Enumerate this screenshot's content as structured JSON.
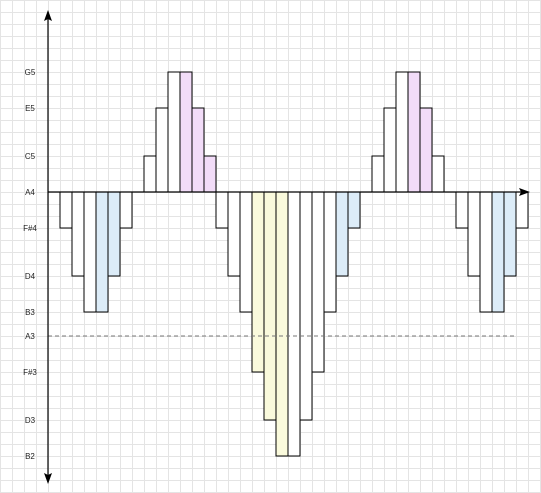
{
  "diagram": {
    "y_axis_labels": [
      "G5",
      "E5",
      "C5",
      "A4",
      "F#4",
      "D4",
      "B3",
      "A3",
      "F#3",
      "D3",
      "B2"
    ],
    "reference_note": "A4",
    "dashed_line_note": "A3",
    "colors": {
      "grid": "#e4e4e4",
      "axis": "#000000",
      "bar_stroke": "#000000",
      "bar_fill": "#ffffff",
      "highlight_pink": "#f2dcf8",
      "highlight_blue": "#dcecf8",
      "highlight_yellow": "#fafadc",
      "dashed_line": "#777777"
    },
    "bars": [
      {
        "note": "F#4",
        "highlight": "none"
      },
      {
        "note": "D4",
        "highlight": "none"
      },
      {
        "note": "B3",
        "highlight": "none"
      },
      {
        "note": "B3",
        "highlight": "blue"
      },
      {
        "note": "D4",
        "highlight": "blue"
      },
      {
        "note": "F#4",
        "highlight": "none"
      },
      {
        "note": "A4",
        "highlight": "none"
      },
      {
        "note": "C5",
        "highlight": "none"
      },
      {
        "note": "E5",
        "highlight": "none"
      },
      {
        "note": "G5",
        "highlight": "none"
      },
      {
        "note": "G5",
        "highlight": "pink"
      },
      {
        "note": "E5",
        "highlight": "pink"
      },
      {
        "note": "C5",
        "highlight": "pink"
      },
      {
        "note": "F#4",
        "highlight": "none"
      },
      {
        "note": "D4",
        "highlight": "none"
      },
      {
        "note": "B3",
        "highlight": "none"
      },
      {
        "note": "F#3",
        "highlight": "yellow"
      },
      {
        "note": "D3",
        "highlight": "yellow"
      },
      {
        "note": "B2",
        "highlight": "yellow"
      },
      {
        "note": "B2",
        "highlight": "none"
      },
      {
        "note": "D3",
        "highlight": "none"
      },
      {
        "note": "F#3",
        "highlight": "none"
      },
      {
        "note": "B3",
        "highlight": "none"
      },
      {
        "note": "D4",
        "highlight": "blue"
      },
      {
        "note": "F#4",
        "highlight": "blue"
      },
      {
        "note": "A4",
        "highlight": "none"
      },
      {
        "note": "C5",
        "highlight": "none"
      },
      {
        "note": "E5",
        "highlight": "none"
      },
      {
        "note": "G5",
        "highlight": "none"
      },
      {
        "note": "G5",
        "highlight": "pink"
      },
      {
        "note": "E5",
        "highlight": "pink"
      },
      {
        "note": "C5",
        "highlight": "none"
      },
      {
        "note": "A4",
        "highlight": "none"
      },
      {
        "note": "F#4",
        "highlight": "none"
      },
      {
        "note": "D4",
        "highlight": "none"
      },
      {
        "note": "B3",
        "highlight": "none"
      },
      {
        "note": "B3",
        "highlight": "blue"
      },
      {
        "note": "D4",
        "highlight": "blue"
      },
      {
        "note": "F#4",
        "highlight": "none"
      }
    ]
  }
}
